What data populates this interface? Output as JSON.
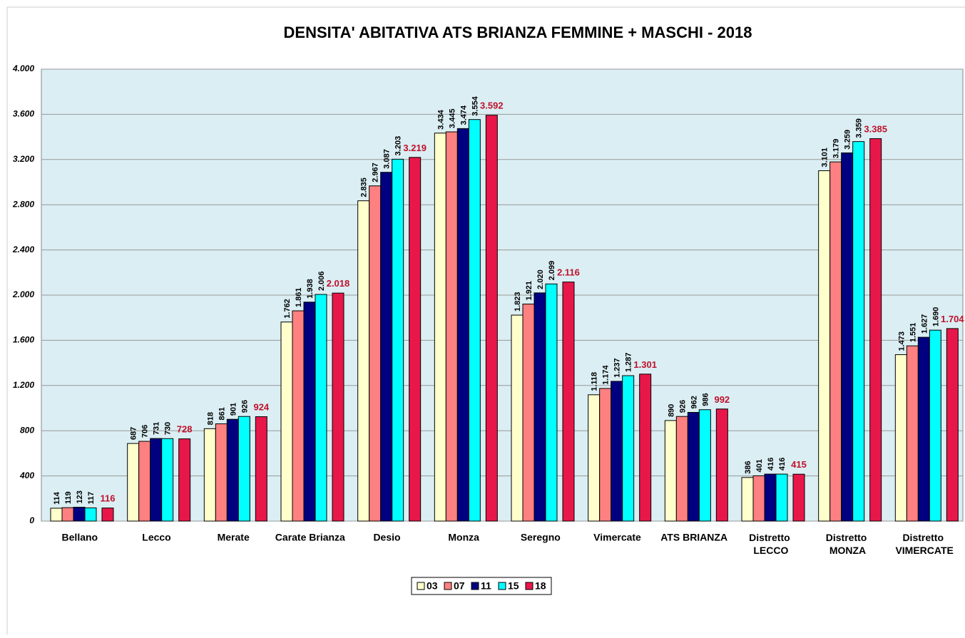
{
  "chart_data": {
    "type": "bar",
    "title": "DENSITA' ABITATIVA ATS BRIANZA  FEMMINE +  MASCHI - 2018",
    "categories": [
      "Bellano",
      "Lecco",
      "Merate",
      "Carate Brianza",
      "Desio",
      "Monza",
      "Seregno",
      "Vimercate",
      "ATS BRIANZA",
      "Distretto LECCO",
      "Distretto MONZA",
      "Distretto VIMERCATE"
    ],
    "series": [
      {
        "name": "03",
        "color": "#ffffcc",
        "values": [
          114,
          687,
          818,
          1762,
          2835,
          3434,
          1823,
          1118,
          890,
          386,
          3101,
          1473
        ],
        "value_labels": [
          "114",
          "687",
          "818",
          "1.762",
          "2.835",
          "3.434",
          "1.823",
          "1.118",
          "890",
          "386",
          "3.101",
          "1.473"
        ]
      },
      {
        "name": "07",
        "color": "#ff8080",
        "values": [
          119,
          706,
          861,
          1861,
          2967,
          3445,
          1921,
          1174,
          926,
          401,
          3179,
          1551
        ],
        "value_labels": [
          "119",
          "706",
          "861",
          "1.861",
          "2.967",
          "3.445",
          "1.921",
          "1.174",
          "926",
          "401",
          "3.179",
          "1.551"
        ]
      },
      {
        "name": "11",
        "color": "#000080",
        "values": [
          123,
          731,
          901,
          1938,
          3087,
          3474,
          2020,
          1237,
          962,
          416,
          3259,
          1627
        ],
        "value_labels": [
          "123",
          "731",
          "901",
          "1.938",
          "3.087",
          "3.474",
          "2.020",
          "1.237",
          "962",
          "416",
          "3.259",
          "1.627"
        ]
      },
      {
        "name": "15",
        "color": "#00ffff",
        "values": [
          117,
          730,
          926,
          2006,
          3203,
          3554,
          2099,
          1287,
          986,
          416,
          3359,
          1690
        ],
        "value_labels": [
          "117",
          "730",
          "926",
          "2.006",
          "3.203",
          "3.554",
          "2.099",
          "1.287",
          "986",
          "416",
          "3.359",
          "1.690"
        ]
      },
      {
        "name": "18",
        "color": "#e8174a",
        "values": [
          116,
          728,
          924,
          2018,
          3219,
          3592,
          2116,
          1301,
          992,
          415,
          3385,
          1704
        ],
        "value_labels": [
          "116",
          "728",
          "924",
          "2.018",
          "3.219",
          "3.592",
          "2.116",
          "1.301",
          "992",
          "415",
          "3.385",
          "1.704"
        ]
      }
    ],
    "ylim": [
      0,
      4000
    ],
    "yticks": [
      0,
      400,
      800,
      {
        "value": 1200,
        "label": "1.200"
      },
      {
        "value": 1600,
        "label": "1.600"
      },
      {
        "value": 2000,
        "label": "2.000"
      },
      {
        "value": 2400,
        "label": "2.400"
      },
      {
        "value": 2800,
        "label": "2.800"
      },
      {
        "value": 3200,
        "label": "3.200"
      },
      {
        "value": 3600,
        "label": "3.600"
      },
      {
        "value": 4000,
        "label": "4.000"
      }
    ],
    "grid": true,
    "legend": "bottom"
  }
}
